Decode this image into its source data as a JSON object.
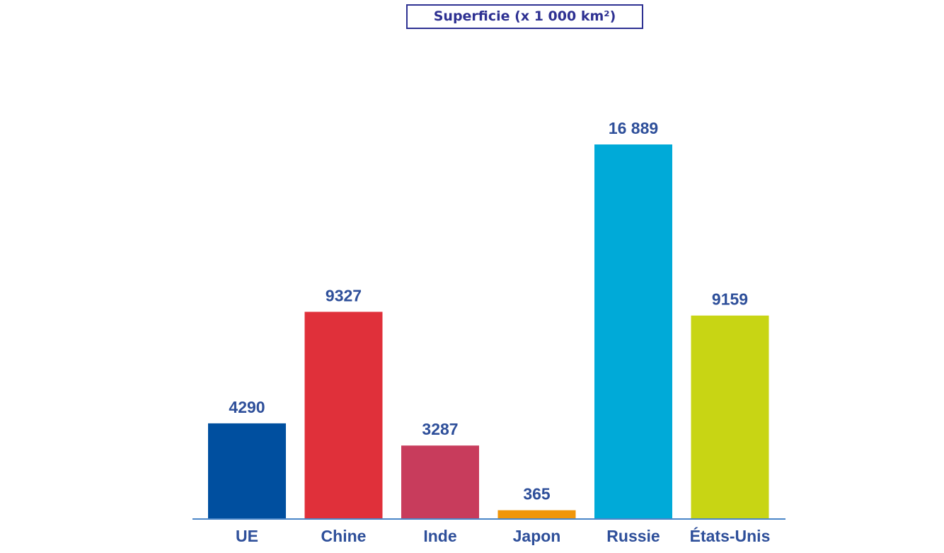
{
  "chart_data": {
    "type": "bar",
    "title": "Superficie (x 1 000 km²)",
    "categories": [
      "UE",
      "Chine",
      "Inde",
      "Japon",
      "Russie",
      "États-Unis"
    ],
    "values": [
      4290,
      9327,
      3287,
      365,
      16889,
      9159
    ],
    "value_labels": [
      "4290",
      "9327",
      "3287",
      "365",
      "16 889",
      "9159"
    ],
    "colors": [
      "#004f9f",
      "#e0303a",
      "#c83c5c",
      "#f0960a",
      "#00aad8",
      "#c8d514"
    ],
    "baseline_color": "#4a86c8",
    "text_color": "#2e4f9a",
    "ylim": [
      0,
      16889
    ],
    "grid": false,
    "legend": "none"
  }
}
